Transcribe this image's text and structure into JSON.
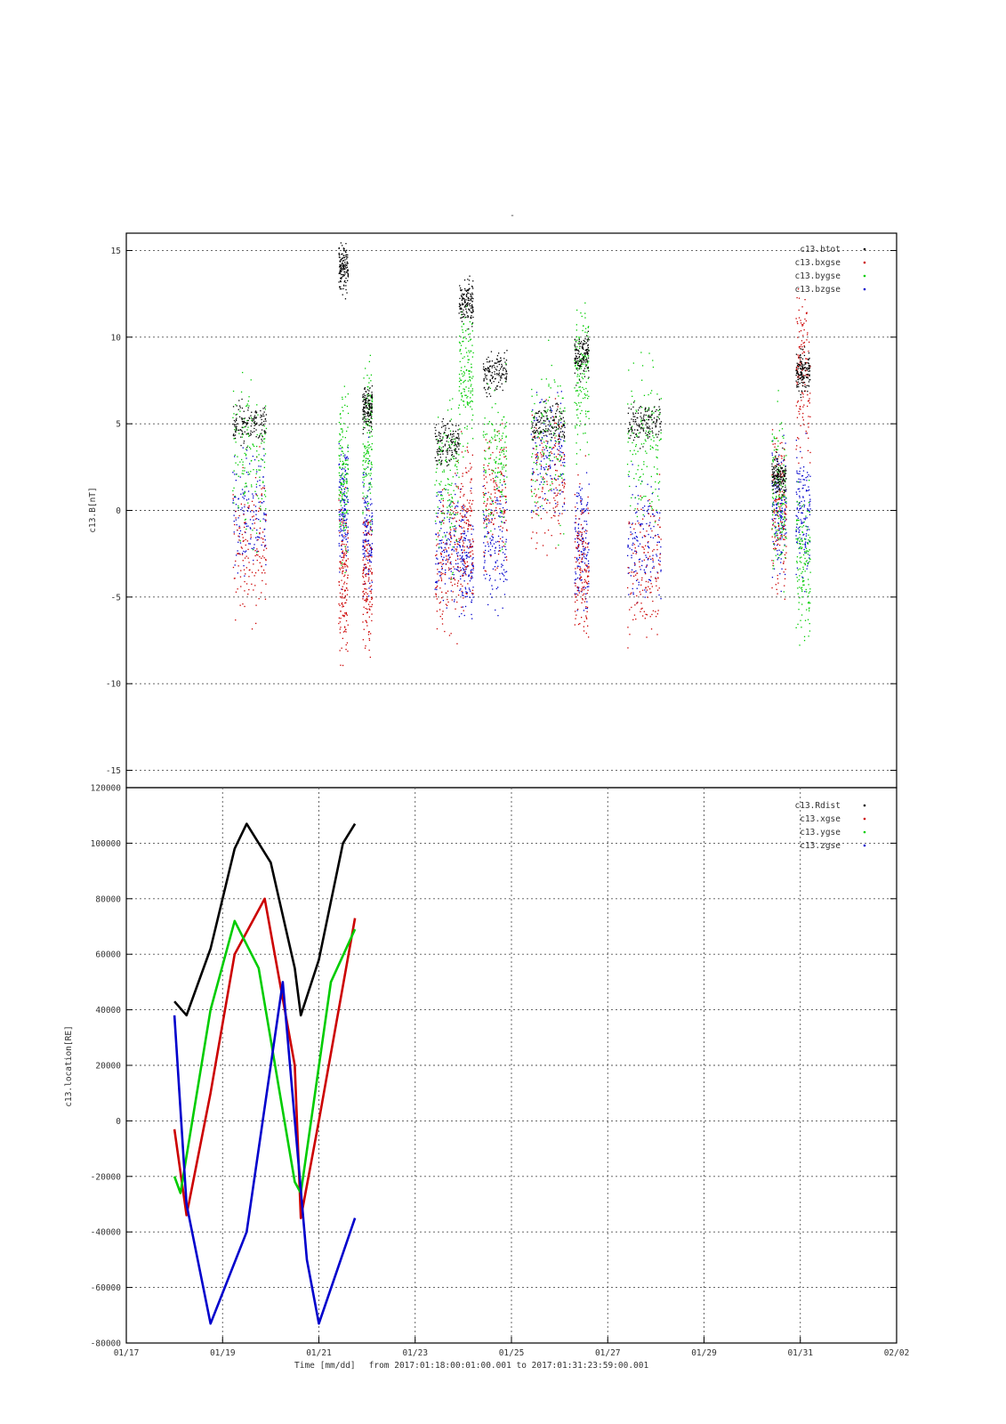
{
  "page_title": "-",
  "footer": {
    "label": "Time [mm/dd]",
    "range_text": "from 2017:01:18:00:01:00.001  to  2017:01:31:23:59:00.001"
  },
  "chart_data": [
    {
      "type": "scatter",
      "ylabel": "c13.B[nT]",
      "xlabel": "",
      "ylim": [
        -16,
        16
      ],
      "yticks": [
        -15,
        -10,
        -5,
        0,
        5,
        10,
        15
      ],
      "grid": true,
      "legend_position": "top-right",
      "series": [
        {
          "name": "c13.btot",
          "color": "#000000"
        },
        {
          "name": "c13.bxgse",
          "color": "#cc0000"
        },
        {
          "name": "c13.bygse",
          "color": "#00cc00"
        },
        {
          "name": "c13.bzgse",
          "color": "#0000cc"
        }
      ],
      "clusters": [
        {
          "x": [
            19.2,
            19.9
          ],
          "btot": 5,
          "bx": -2,
          "by": 3,
          "bz": 0
        },
        {
          "x": [
            21.4,
            21.6
          ],
          "btot": 14,
          "bx": -4,
          "by": 2,
          "bz": 0
        },
        {
          "x": [
            21.9,
            22.1
          ],
          "btot": 6,
          "bx": -4,
          "by": 4,
          "bz": -1
        },
        {
          "x": [
            23.4,
            23.9
          ],
          "btot": 4,
          "bx": -3,
          "by": 2,
          "bz": -2
        },
        {
          "x": [
            23.9,
            24.2
          ],
          "btot": 12,
          "bx": -1,
          "by": 8,
          "bz": -3
        },
        {
          "x": [
            24.4,
            24.9
          ],
          "btot": 8,
          "bx": 1,
          "by": 3,
          "bz": -2
        },
        {
          "x": [
            25.4,
            26.1
          ],
          "btot": 5,
          "bx": 2,
          "by": 4,
          "bz": 3
        },
        {
          "x": [
            26.3,
            26.6
          ],
          "btot": 9,
          "bx": -3,
          "by": 8,
          "bz": -2
        },
        {
          "x": [
            27.4,
            28.1
          ],
          "btot": 5,
          "bx": -3,
          "by": 4,
          "bz": -2
        },
        {
          "x": [
            30.4,
            30.7
          ],
          "btot": 2,
          "bx": 0,
          "by": 1,
          "bz": 0
        },
        {
          "x": [
            30.9,
            31.2
          ],
          "btot": 8,
          "bx": 8,
          "by": -3,
          "bz": 0
        }
      ]
    },
    {
      "type": "line",
      "ylabel": "c13.location[RE]",
      "xlabel": "Time [mm/dd]",
      "ylim": [
        -80000,
        120000
      ],
      "yticks": [
        -80000,
        -60000,
        -40000,
        -20000,
        0,
        20000,
        40000,
        60000,
        80000,
        100000,
        120000
      ],
      "xlim": [
        "01/17",
        "02/02"
      ],
      "xticks": [
        "01/17",
        "01/19",
        "01/21",
        "01/23",
        "01/25",
        "01/27",
        "01/29",
        "01/31",
        "02/02"
      ],
      "grid": true,
      "legend_position": "top-right",
      "series": [
        {
          "name": "c13.Rdist",
          "color": "#000000",
          "points": [
            [
              "01/18 00:00",
              43000
            ],
            [
              "01/18 06:00",
              38000
            ],
            [
              "01/18 18:00",
              62000
            ],
            [
              "01/19 06:00",
              98000
            ],
            [
              "01/19 12:00",
              107000
            ],
            [
              "01/20 00:00",
              93000
            ],
            [
              "01/20 12:00",
              55000
            ],
            [
              "01/20 15:00",
              38000
            ],
            [
              "01/21 00:00",
              58000
            ],
            [
              "01/21 12:00",
              100000
            ],
            [
              "01/21 18:00",
              107000
            ]
          ]
        },
        {
          "name": "c13.xgse",
          "color": "#cc0000",
          "points": [
            [
              "01/18 00:00",
              -3000
            ],
            [
              "01/18 06:00",
              -34000
            ],
            [
              "01/18 18:00",
              10000
            ],
            [
              "01/19 06:00",
              60000
            ],
            [
              "01/19 21:00",
              80000
            ],
            [
              "01/20 12:00",
              20000
            ],
            [
              "01/20 15:00",
              -35000
            ],
            [
              "01/21 00:00",
              0
            ],
            [
              "01/21 18:00",
              73000
            ]
          ]
        },
        {
          "name": "c13.ygse",
          "color": "#00cc00",
          "points": [
            [
              "01/18 00:00",
              -20000
            ],
            [
              "01/18 03:00",
              -26000
            ],
            [
              "01/18 18:00",
              40000
            ],
            [
              "01/19 06:00",
              72000
            ],
            [
              "01/19 18:00",
              55000
            ],
            [
              "01/20 12:00",
              -22000
            ],
            [
              "01/20 15:00",
              -26000
            ],
            [
              "01/21 06:00",
              50000
            ],
            [
              "01/21 18:00",
              69000
            ]
          ]
        },
        {
          "name": "c13.zgse",
          "color": "#0000cc",
          "points": [
            [
              "01/18 00:00",
              38000
            ],
            [
              "01/18 06:00",
              -30000
            ],
            [
              "01/18 18:00",
              -73000
            ],
            [
              "01/19 12:00",
              -40000
            ],
            [
              "01/20 00:00",
              20000
            ],
            [
              "01/20 06:00",
              50000
            ],
            [
              "01/20 18:00",
              -50000
            ],
            [
              "01/21 00:00",
              -73000
            ],
            [
              "01/21 18:00",
              -35000
            ]
          ]
        }
      ]
    }
  ]
}
